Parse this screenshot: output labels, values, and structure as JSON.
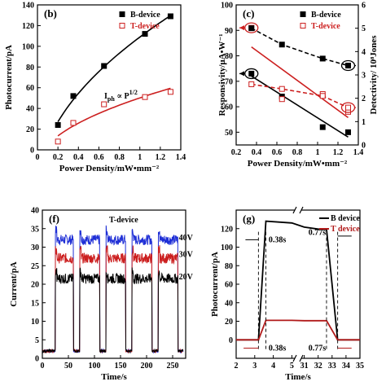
{
  "colors": {
    "black": "#000000",
    "red": "#cc1f1f",
    "blue": "#1f2fd6",
    "darkred": "#b11a1a"
  },
  "chart_data": [
    {
      "id": "b",
      "type": "scatter",
      "panel_label": "(b)",
      "xlabel": "Power Density/mW•mm⁻²",
      "ylabel": "Photocurrent/pA",
      "xlim": [
        0.0,
        1.4
      ],
      "ylim": [
        0,
        140
      ],
      "xticks": [
        0.0,
        0.2,
        0.4,
        0.6,
        0.8,
        1.0,
        1.2,
        1.4
      ],
      "yticks": [
        0,
        20,
        40,
        60,
        80,
        100,
        120,
        140
      ],
      "annotation": "I_ph ∝ P^1/2",
      "legend": [
        "B-device",
        "T-device"
      ],
      "legend_position": "top-right",
      "series": [
        {
          "name": "B-device",
          "marker": "filled-square",
          "color": "#000000",
          "x": [
            0.2,
            0.35,
            0.65,
            1.05,
            1.3
          ],
          "y": [
            24,
            52,
            81,
            112,
            129
          ]
        },
        {
          "name": "T-device",
          "marker": "open-square",
          "color": "#cc1f1f",
          "x": [
            0.2,
            0.35,
            0.65,
            1.05,
            1.3
          ],
          "y": [
            8,
            26,
            44,
            51,
            56
          ]
        }
      ]
    },
    {
      "id": "c",
      "type": "scatter",
      "panel_label": "(c)",
      "xlabel": "Power Density/mW•mm⁻²",
      "ylabel": "Responsivity/μA•W⁻¹",
      "y2label": "Detectivity/ 10⁸Jones",
      "xlim": [
        0.2,
        1.4
      ],
      "ylim": [
        45,
        100
      ],
      "y2lim": [
        0,
        6
      ],
      "xticks": [
        0.2,
        0.4,
        0.6,
        0.8,
        1.0,
        1.2,
        1.4
      ],
      "yticks": [
        50,
        60,
        70,
        80,
        90,
        100
      ],
      "y2ticks": [
        0,
        1,
        2,
        3,
        4,
        5,
        6
      ],
      "legend": [
        "B-device",
        "T-device"
      ],
      "legend_position": "top-right",
      "series": [
        {
          "name": "B-device",
          "axis": "left",
          "marker": "filled-square",
          "color": "#000000",
          "x": [
            0.35,
            0.65,
            1.05,
            1.3
          ],
          "y": [
            73,
            64,
            52,
            50
          ]
        },
        {
          "name": "T-device",
          "axis": "left",
          "marker": "open-square",
          "color": "#cc1f1f",
          "x": [
            0.35,
            0.65,
            1.05,
            1.3
          ],
          "y": [
            91,
            63,
            65,
            58
          ]
        },
        {
          "name": "B-device",
          "axis": "right",
          "marker": "filled-square",
          "color": "#000000",
          "x": [
            0.35,
            0.65,
            1.05,
            1.3
          ],
          "y": [
            5.0,
            4.3,
            3.7,
            3.4
          ]
        },
        {
          "name": "T-device",
          "axis": "right",
          "marker": "open-square",
          "color": "#cc1f1f",
          "x": [
            0.35,
            0.65,
            1.05,
            1.3
          ],
          "y": [
            2.6,
            2.4,
            2.1,
            1.6
          ]
        }
      ]
    },
    {
      "id": "f",
      "type": "line",
      "panel_label": "(f)",
      "title": "T-device",
      "xlabel": "Time/s",
      "ylabel": "Current/pA",
      "xlim": [
        0,
        275
      ],
      "ylim": [
        0,
        40
      ],
      "xticks": [
        0,
        50,
        100,
        150,
        200,
        250
      ],
      "yticks": [
        0,
        5,
        10,
        15,
        20,
        25,
        30,
        35,
        40
      ],
      "on_intervals": [
        [
          25,
          60
        ],
        [
          72,
          110
        ],
        [
          122,
          160
        ],
        [
          172,
          210
        ],
        [
          222,
          260
        ]
      ],
      "off_level": 2,
      "series": [
        {
          "name": "40V",
          "color": "#1f2fd6",
          "on_level": 32
        },
        {
          "name": "30V",
          "color": "#cc1f1f",
          "on_level": 27
        },
        {
          "name": "20V",
          "color": "#000000",
          "on_level": 21.5
        }
      ]
    },
    {
      "id": "g",
      "type": "line",
      "panel_label": "(g)",
      "xlabel": "Time/s",
      "ylabel": "Photocurrent/pA",
      "xlim": [
        2,
        35
      ],
      "ylim": [
        -20,
        140
      ],
      "xticks": [
        2,
        3,
        4,
        5,
        31,
        32,
        33,
        34,
        35
      ],
      "yticks": [
        0,
        20,
        40,
        60,
        80,
        100,
        120
      ],
      "broken_axis": true,
      "legend": [
        "B device",
        "T device"
      ],
      "legend_position": "top-right",
      "rise_label": "0.38s",
      "fall_label": "0.77s",
      "series": [
        {
          "name": "B device",
          "color": "#000000",
          "on_level": 128,
          "off_level": 0
        },
        {
          "name": "T device",
          "color": "#b11a1a",
          "on_level": 21,
          "off_level": 0
        }
      ]
    }
  ]
}
